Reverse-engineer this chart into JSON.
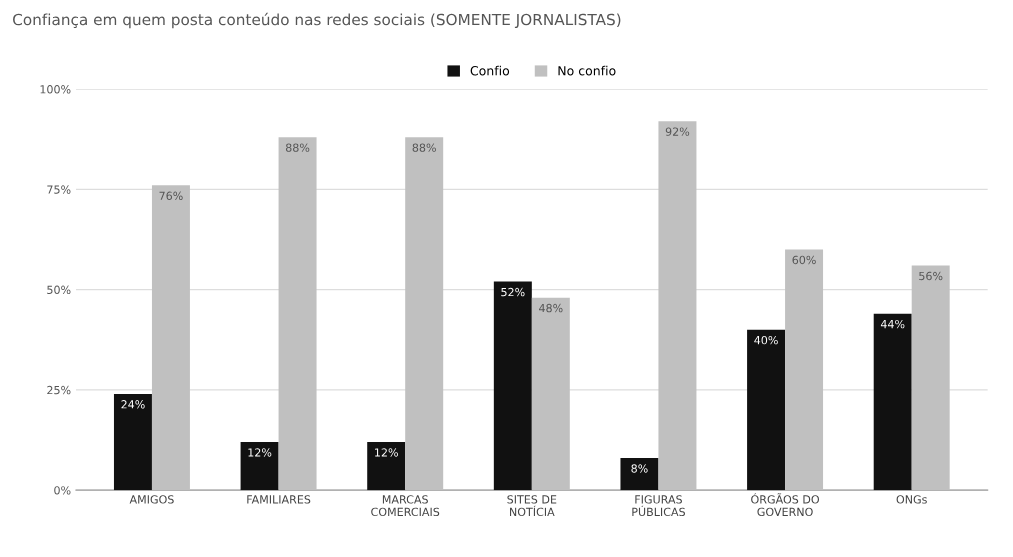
{
  "chart_data": {
    "type": "bar",
    "title": "Confiança em quem posta conteúdo nas redes sociais (SOMENTE JORNALISTAS)",
    "categories": [
      "AMIGOS",
      "FAMILIARES",
      "MARCAS\nCOMERCIAIS",
      "SITES DE\nNOTÍCIA",
      "FIGURAS\nPÚBLICAS",
      "ÓRGÃOS DO\nGOVERNO",
      "ONGs"
    ],
    "series": [
      {
        "name": "Confio",
        "color": "#111111",
        "values": [
          24,
          12,
          12,
          52,
          8,
          40,
          44
        ],
        "value_labels": [
          "24%",
          "12%",
          "12%",
          "52%",
          "8%",
          "40%",
          "44%"
        ]
      },
      {
        "name": "No confio",
        "color": "#c0c0c0",
        "values": [
          76,
          88,
          88,
          48,
          92,
          60,
          56
        ],
        "value_labels": [
          "76%",
          "88%",
          "88%",
          "48%",
          "92%",
          "60%",
          "56%"
        ]
      }
    ],
    "ylim": [
      0,
      100
    ],
    "yticks": [
      {
        "value": 0,
        "label": "0%"
      },
      {
        "value": 25,
        "label": "25%"
      },
      {
        "value": 50,
        "label": "50%"
      },
      {
        "value": 75,
        "label": "75%"
      },
      {
        "value": 100,
        "label": "100%"
      }
    ],
    "grid": "y",
    "legend": "top"
  }
}
